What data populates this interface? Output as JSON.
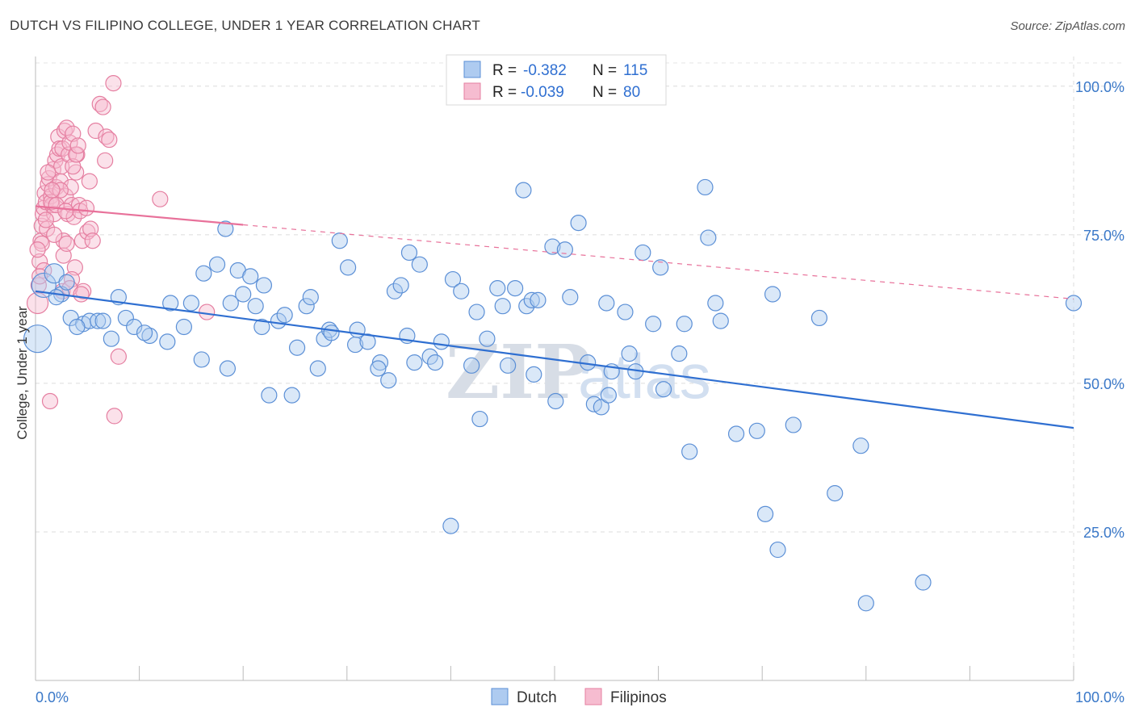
{
  "title": "DUTCH VS FILIPINO COLLEGE, UNDER 1 YEAR CORRELATION CHART",
  "source": "Source: ZipAtlas.com",
  "watermark": {
    "zip": "ZIP",
    "atlas": "atlas"
  },
  "colors": {
    "dutch": "#5b8fd6",
    "dutch_fill": "#aecbf0",
    "dutch_line": "#2f6fd1",
    "filipinos": "#e57fa1",
    "filipinos_fill": "#f6bcd0",
    "filipinos_line": "#e8719a",
    "tick": "#3a78c8"
  },
  "legend": {
    "r_label": "R =",
    "n_label": "N =",
    "rows": [
      {
        "r": "-0.382",
        "n": "115"
      },
      {
        "r": "-0.039",
        "n": "80"
      }
    ]
  },
  "bottom_legend": [
    "Dutch",
    "Filipinos"
  ],
  "chart_data": {
    "type": "scatter",
    "ylabel": "College, Under 1 year",
    "xlim": [
      0,
      100
    ],
    "ylim": [
      0,
      105
    ],
    "x_tick_labels": [
      "0.0%",
      "100.0%"
    ],
    "y_ticks": [
      {
        "value": 25,
        "label": "25.0%"
      },
      {
        "value": 50,
        "label": "50.0%"
      },
      {
        "value": 75,
        "label": "75.0%"
      },
      {
        "value": 100,
        "label": "100.0%"
      }
    ],
    "grid": true,
    "series": [
      {
        "name": "Dutch",
        "trend": {
          "x": [
            0,
            100
          ],
          "y": [
            65.5,
            42.5
          ],
          "dashed_from": null
        },
        "points": [
          [
            0.2,
            57.5
          ],
          [
            0.8,
            66.5
          ],
          [
            1.8,
            68.5
          ],
          [
            2.5,
            65.0
          ],
          [
            3.4,
            61.0
          ],
          [
            4.6,
            60.0
          ],
          [
            5.2,
            60.5
          ],
          [
            6.0,
            60.5
          ],
          [
            7.3,
            57.5
          ],
          [
            8.7,
            61.0
          ],
          [
            9.5,
            59.5
          ],
          [
            11.0,
            58.0
          ],
          [
            12.7,
            57.0
          ],
          [
            13.0,
            63.5
          ],
          [
            14.3,
            59.5
          ],
          [
            15.0,
            63.5
          ],
          [
            16.2,
            68.5
          ],
          [
            17.5,
            70.0
          ],
          [
            18.3,
            76.0
          ],
          [
            18.5,
            52.5
          ],
          [
            18.8,
            63.5
          ],
          [
            19.5,
            69.0
          ],
          [
            20.7,
            68.0
          ],
          [
            21.2,
            63.0
          ],
          [
            21.8,
            59.5
          ],
          [
            22.0,
            66.5
          ],
          [
            22.5,
            48.0
          ],
          [
            23.4,
            60.5
          ],
          [
            24.7,
            48.0
          ],
          [
            25.2,
            56.0
          ],
          [
            26.1,
            63.0
          ],
          [
            26.5,
            64.5
          ],
          [
            27.2,
            52.5
          ],
          [
            27.8,
            57.5
          ],
          [
            28.3,
            59.0
          ],
          [
            29.3,
            74.0
          ],
          [
            30.1,
            69.5
          ],
          [
            30.8,
            56.5
          ],
          [
            31.0,
            59.0
          ],
          [
            32.0,
            57.0
          ],
          [
            33.2,
            53.5
          ],
          [
            34.0,
            50.5
          ],
          [
            34.6,
            65.5
          ],
          [
            35.2,
            66.5
          ],
          [
            35.8,
            58.0
          ],
          [
            36.5,
            53.5
          ],
          [
            37.0,
            70.0
          ],
          [
            38.0,
            54.5
          ],
          [
            38.5,
            53.5
          ],
          [
            39.1,
            57.0
          ],
          [
            40.2,
            67.5
          ],
          [
            41.0,
            65.5
          ],
          [
            42.0,
            53.0
          ],
          [
            42.5,
            62.0
          ],
          [
            42.8,
            44.0
          ],
          [
            43.5,
            57.5
          ],
          [
            44.5,
            66.0
          ],
          [
            45.5,
            53.0
          ],
          [
            46.2,
            66.0
          ],
          [
            47.0,
            82.5
          ],
          [
            47.3,
            63.0
          ],
          [
            47.8,
            64.0
          ],
          [
            48.0,
            51.5
          ],
          [
            48.4,
            64.0
          ],
          [
            49.8,
            73.0
          ],
          [
            50.1,
            47.0
          ],
          [
            51.0,
            72.5
          ],
          [
            51.5,
            64.5
          ],
          [
            52.3,
            77.0
          ],
          [
            53.2,
            53.5
          ],
          [
            53.8,
            46.5
          ],
          [
            54.5,
            46.0
          ],
          [
            55.0,
            63.5
          ],
          [
            55.5,
            52.0
          ],
          [
            56.8,
            62.0
          ],
          [
            57.2,
            55.0
          ],
          [
            58.5,
            72.0
          ],
          [
            59.5,
            60.0
          ],
          [
            60.2,
            69.5
          ],
          [
            60.5,
            49.0
          ],
          [
            62.0,
            55.0
          ],
          [
            62.5,
            60.0
          ],
          [
            63.0,
            38.5
          ],
          [
            64.5,
            83.0
          ],
          [
            64.8,
            74.5
          ],
          [
            65.5,
            63.5
          ],
          [
            66.0,
            60.5
          ],
          [
            67.5,
            41.5
          ],
          [
            69.5,
            42.0
          ],
          [
            70.3,
            28.0
          ],
          [
            71.0,
            65.0
          ],
          [
            71.5,
            22.0
          ],
          [
            73.0,
            43.0
          ],
          [
            75.5,
            61.0
          ],
          [
            77.0,
            31.5
          ],
          [
            79.5,
            39.5
          ],
          [
            80.0,
            13.0
          ],
          [
            85.5,
            16.5
          ],
          [
            100.0,
            63.5
          ],
          [
            2.0,
            64.5
          ],
          [
            4.0,
            59.5
          ],
          [
            10.5,
            58.5
          ],
          [
            24.0,
            61.5
          ],
          [
            33.0,
            52.5
          ],
          [
            36.0,
            72.0
          ],
          [
            40.0,
            26.0
          ],
          [
            45.0,
            63.0
          ],
          [
            55.2,
            48.0
          ],
          [
            3.0,
            67.0
          ],
          [
            6.5,
            60.5
          ],
          [
            8.0,
            64.5
          ],
          [
            16.0,
            54.0
          ],
          [
            20.0,
            65.0
          ],
          [
            28.5,
            58.5
          ],
          [
            57.8,
            52.0
          ]
        ]
      },
      {
        "name": "Filipinos",
        "trend": {
          "x": [
            0,
            100
          ],
          "y": [
            79.8,
            64.2
          ],
          "dashed_from": 20
        },
        "points": [
          [
            0.2,
            63.5
          ],
          [
            0.3,
            66.5
          ],
          [
            0.4,
            70.5
          ],
          [
            0.5,
            74.0
          ],
          [
            0.6,
            76.5
          ],
          [
            0.7,
            78.5
          ],
          [
            0.8,
            79.5
          ],
          [
            0.9,
            82.0
          ],
          [
            1.0,
            80.5
          ],
          [
            1.1,
            76.0
          ],
          [
            1.2,
            83.5
          ],
          [
            1.3,
            84.5
          ],
          [
            1.5,
            81.5
          ],
          [
            1.6,
            80.0
          ],
          [
            1.7,
            86.0
          ],
          [
            1.8,
            78.5
          ],
          [
            1.9,
            87.5
          ],
          [
            2.0,
            83.0
          ],
          [
            2.1,
            88.5
          ],
          [
            2.2,
            91.5
          ],
          [
            2.3,
            89.5
          ],
          [
            2.4,
            84.0
          ],
          [
            2.5,
            86.5
          ],
          [
            2.6,
            89.5
          ],
          [
            2.7,
            74.0
          ],
          [
            2.8,
            92.5
          ],
          [
            2.9,
            81.5
          ],
          [
            3.0,
            93.0
          ],
          [
            3.1,
            78.5
          ],
          [
            3.2,
            88.5
          ],
          [
            3.3,
            90.5
          ],
          [
            3.4,
            83.0
          ],
          [
            3.5,
            80.0
          ],
          [
            3.6,
            92.0
          ],
          [
            3.7,
            78.0
          ],
          [
            3.8,
            69.5
          ],
          [
            3.9,
            85.5
          ],
          [
            4.0,
            88.5
          ],
          [
            4.2,
            80.0
          ],
          [
            4.5,
            74.0
          ],
          [
            5.0,
            75.5
          ],
          [
            5.3,
            76.0
          ],
          [
            5.8,
            92.5
          ],
          [
            6.2,
            97.0
          ],
          [
            6.5,
            96.5
          ],
          [
            6.8,
            91.5
          ],
          [
            7.1,
            91.0
          ],
          [
            7.5,
            100.5
          ],
          [
            7.6,
            44.5
          ],
          [
            8.0,
            54.5
          ],
          [
            12.0,
            81.0
          ],
          [
            16.5,
            62.0
          ],
          [
            2.6,
            65.5
          ],
          [
            3.5,
            67.5
          ],
          [
            4.6,
            65.5
          ],
          [
            1.4,
            47.0
          ],
          [
            0.6,
            73.5
          ],
          [
            1.0,
            77.5
          ],
          [
            1.5,
            80.5
          ],
          [
            2.0,
            80.0
          ],
          [
            2.7,
            71.5
          ],
          [
            3.3,
            66.0
          ],
          [
            4.3,
            79.0
          ],
          [
            5.5,
            74.0
          ],
          [
            0.8,
            69.0
          ],
          [
            1.2,
            85.5
          ],
          [
            2.4,
            82.5
          ],
          [
            3.6,
            86.5
          ],
          [
            4.9,
            79.5
          ],
          [
            6.7,
            87.5
          ],
          [
            0.4,
            68.0
          ],
          [
            1.6,
            82.5
          ],
          [
            2.9,
            79.0
          ],
          [
            3.9,
            88.5
          ],
          [
            5.2,
            84.0
          ],
          [
            0.2,
            72.5
          ],
          [
            1.8,
            75.0
          ],
          [
            3.0,
            73.5
          ],
          [
            4.1,
            90.0
          ],
          [
            4.4,
            65.0
          ]
        ]
      }
    ]
  }
}
